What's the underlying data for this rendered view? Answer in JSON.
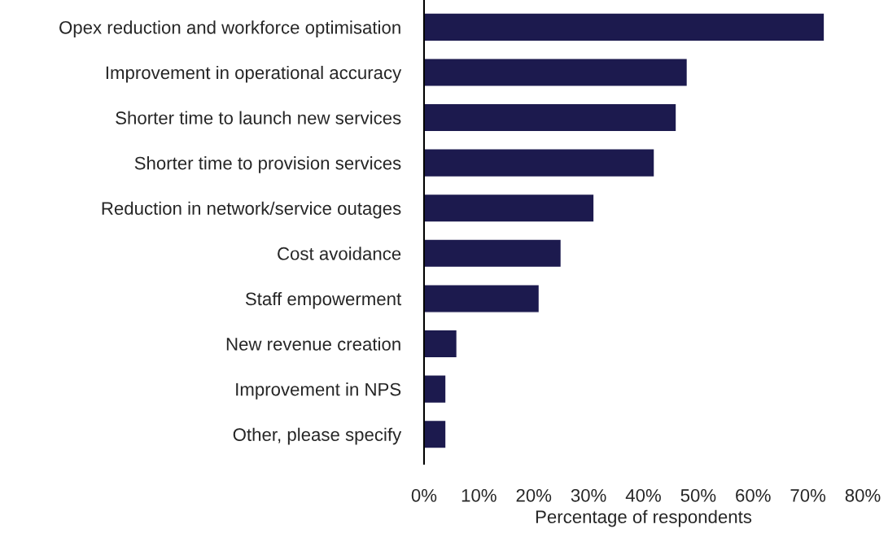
{
  "chart_data": {
    "type": "bar",
    "orientation": "horizontal",
    "xlabel": "Percentage of respondents",
    "categories": [
      "Opex reduction and workforce optimisation",
      "Improvement in operational accuracy",
      "Shorter time to launch new services",
      "Shorter time to provision services",
      "Reduction in network/service outages",
      "Cost avoidance",
      "Staff empowerment",
      "New revenue creation",
      "Improvement in NPS",
      "Other, please specify"
    ],
    "values": [
      73,
      48,
      46,
      42,
      31,
      25,
      21,
      6,
      4,
      4
    ],
    "color": "#1c1a4e",
    "xlim": [
      0,
      80
    ],
    "xticks": [
      {
        "value": 0,
        "label": "0%"
      },
      {
        "value": 10,
        "label": "10%"
      },
      {
        "value": 20,
        "label": "20%"
      },
      {
        "value": 30,
        "label": "30%"
      },
      {
        "value": 40,
        "label": "40%"
      },
      {
        "value": 50,
        "label": "50%"
      },
      {
        "value": 60,
        "label": "60%"
      },
      {
        "value": 70,
        "label": "70%"
      },
      {
        "value": 80,
        "label": "80%"
      }
    ],
    "grid": false,
    "legend": false
  }
}
